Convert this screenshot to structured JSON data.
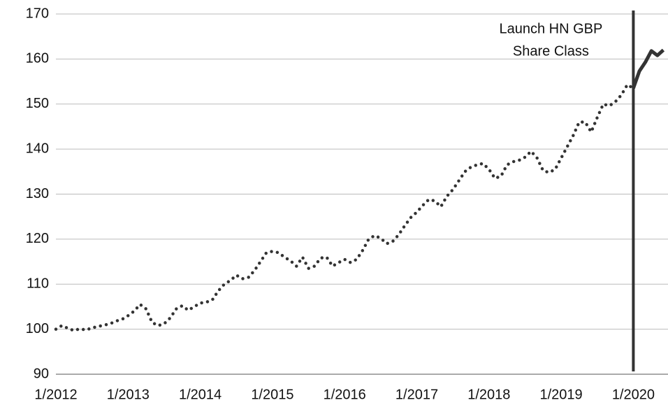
{
  "chart_data": {
    "type": "line",
    "annotation": {
      "lines": [
        "Launch HN GBP",
        "Share Class"
      ],
      "x": "1/2020"
    },
    "x": [
      "1/2012",
      "2/2012",
      "3/2012",
      "4/2012",
      "5/2012",
      "6/2012",
      "7/2012",
      "8/2012",
      "9/2012",
      "10/2012",
      "11/2012",
      "12/2012",
      "1/2013",
      "2/2013",
      "3/2013",
      "4/2013",
      "5/2013",
      "6/2013",
      "7/2013",
      "8/2013",
      "9/2013",
      "10/2013",
      "11/2013",
      "12/2013",
      "1/2014",
      "2/2014",
      "3/2014",
      "4/2014",
      "5/2014",
      "6/2014",
      "7/2014",
      "8/2014",
      "9/2014",
      "10/2014",
      "11/2014",
      "12/2014",
      "1/2015",
      "2/2015",
      "3/2015",
      "4/2015",
      "5/2015",
      "6/2015",
      "7/2015",
      "8/2015",
      "9/2015",
      "10/2015",
      "11/2015",
      "12/2015",
      "1/2016",
      "2/2016",
      "3/2016",
      "4/2016",
      "5/2016",
      "6/2016",
      "7/2016",
      "8/2016",
      "9/2016",
      "10/2016",
      "11/2016",
      "12/2016",
      "1/2017",
      "2/2017",
      "3/2017",
      "4/2017",
      "5/2017",
      "6/2017",
      "7/2017",
      "8/2017",
      "9/2017",
      "10/2017",
      "11/2017",
      "12/2017",
      "1/2018",
      "2/2018",
      "3/2018",
      "4/2018",
      "5/2018",
      "6/2018",
      "7/2018",
      "8/2018",
      "9/2018",
      "10/2018",
      "11/2018",
      "12/2018",
      "1/2019",
      "2/2019",
      "3/2019",
      "4/2019",
      "5/2019",
      "6/2019",
      "7/2019",
      "8/2019",
      "9/2019",
      "10/2019",
      "11/2019",
      "12/2019",
      "1/2020",
      "2/2020",
      "3/2020",
      "4/2020",
      "5/2020",
      "6/2020"
    ],
    "series": [
      {
        "style": "dotted",
        "color": "#333333",
        "values": [
          100,
          100.8,
          100.2,
          99.7,
          100.1,
          99.8,
          100.3,
          100.6,
          100.9,
          101.2,
          101.8,
          102.2,
          103,
          104,
          105.5,
          104.5,
          101.5,
          100.8,
          101.2,
          102.5,
          104.5,
          105.2,
          104.2,
          105,
          105.8,
          106,
          106.5,
          108.5,
          110,
          110.8,
          112,
          111.2,
          111.5,
          113,
          115,
          117,
          117.3,
          117,
          116,
          115.2,
          114,
          116,
          113.5,
          114,
          115.8,
          116,
          114,
          114.8,
          115.5,
          114.8,
          115.5,
          117.5,
          120,
          120.8,
          120.2,
          119,
          119.5,
          121,
          123,
          124.8,
          126,
          127.5,
          128.8,
          128.5,
          127.2,
          129.5,
          131,
          133,
          135,
          136,
          136.5,
          136.8,
          135.5,
          133.5,
          134,
          136.5,
          137.2,
          137.5,
          138.2,
          139.5,
          138,
          135.2,
          134.8,
          135.5,
          138,
          140.5,
          143,
          146,
          146,
          143.8,
          147,
          150,
          149.6,
          150.5,
          152,
          154.3,
          153.5,
          null,
          null,
          null,
          null,
          null
        ]
      },
      {
        "style": "solid",
        "color": "#333333",
        "values": [
          null,
          null,
          null,
          null,
          null,
          null,
          null,
          null,
          null,
          null,
          null,
          null,
          null,
          null,
          null,
          null,
          null,
          null,
          null,
          null,
          null,
          null,
          null,
          null,
          null,
          null,
          null,
          null,
          null,
          null,
          null,
          null,
          null,
          null,
          null,
          null,
          null,
          null,
          null,
          null,
          null,
          null,
          null,
          null,
          null,
          null,
          null,
          null,
          null,
          null,
          null,
          null,
          null,
          null,
          null,
          null,
          null,
          null,
          null,
          null,
          null,
          null,
          null,
          null,
          null,
          null,
          null,
          null,
          null,
          null,
          null,
          null,
          null,
          null,
          null,
          null,
          null,
          null,
          null,
          null,
          null,
          null,
          null,
          null,
          null,
          null,
          null,
          null,
          null,
          null,
          null,
          null,
          null,
          null,
          null,
          null,
          153.5,
          157.3,
          159.3,
          161.8,
          160.8,
          162
        ]
      }
    ],
    "ylim": [
      90,
      170
    ],
    "yticks": [
      90,
      100,
      110,
      120,
      130,
      140,
      150,
      160,
      170
    ],
    "grid": true
  }
}
